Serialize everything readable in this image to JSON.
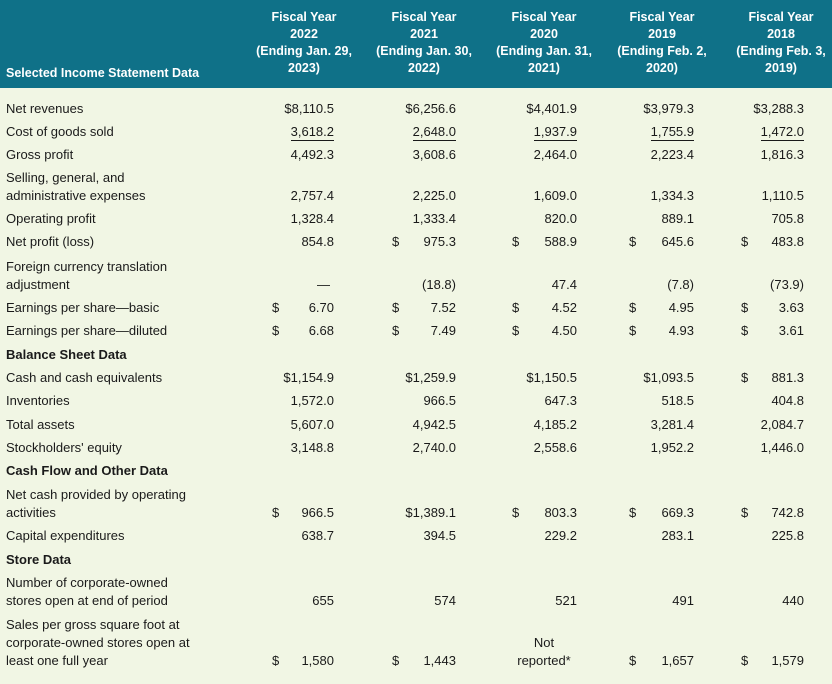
{
  "header": {
    "row_label": "Selected Income Statement Data",
    "columns": [
      {
        "l1": "Fiscal Year",
        "l2": "2022",
        "l3": "(Ending Jan. 29,",
        "l4": "2023)"
      },
      {
        "l1": "Fiscal Year",
        "l2": "2021",
        "l3": "(Ending Jan. 30,",
        "l4": "2022)"
      },
      {
        "l1": "Fiscal Year",
        "l2": "2020",
        "l3": "(Ending Jan. 31,",
        "l4": "2021)"
      },
      {
        "l1": "Fiscal Year",
        "l2": "2019",
        "l3": "(Ending Feb. 2,",
        "l4": "2020)"
      },
      {
        "l1": "Fiscal Year",
        "l2": "2018",
        "l3": "(Ending Feb. 3,",
        "l4": "2019)"
      }
    ]
  },
  "rows": [
    {
      "label": [
        "Net revenues"
      ],
      "cells": [
        {
          "d": "",
          "v": "$8,110.5"
        },
        {
          "d": "",
          "v": "$6,256.6"
        },
        {
          "d": "",
          "v": "$4,401.9"
        },
        {
          "d": "",
          "v": "$3,979.3"
        },
        {
          "d": "",
          "v": "$3,288.3"
        }
      ]
    },
    {
      "label": [
        "Cost of goods sold"
      ],
      "underline": true,
      "cells": [
        {
          "d": "",
          "v": "3,618.2"
        },
        {
          "d": "",
          "v": "2,648.0"
        },
        {
          "d": "",
          "v": "1,937.9"
        },
        {
          "d": "",
          "v": "1,755.9"
        },
        {
          "d": "",
          "v": "1,472.0"
        }
      ]
    },
    {
      "label": [
        "Gross profit"
      ],
      "cells": [
        {
          "d": "",
          "v": "4,492.3"
        },
        {
          "d": "",
          "v": "3,608.6"
        },
        {
          "d": "",
          "v": "2,464.0"
        },
        {
          "d": "",
          "v": "2,223.4"
        },
        {
          "d": "",
          "v": "1,816.3"
        }
      ]
    },
    {
      "label": [
        "Selling, general, and",
        "administrative expenses"
      ],
      "cells": [
        {
          "d": "",
          "v": "2,757.4"
        },
        {
          "d": "",
          "v": "2,225.0"
        },
        {
          "d": "",
          "v": "1,609.0"
        },
        {
          "d": "",
          "v": "1,334.3"
        },
        {
          "d": "",
          "v": "1,110.5"
        }
      ]
    },
    {
      "label": [
        "Operating profit"
      ],
      "cells": [
        {
          "d": "",
          "v": "1,328.4"
        },
        {
          "d": "",
          "v": "1,333.4"
        },
        {
          "d": "",
          "v": "820.0"
        },
        {
          "d": "",
          "v": "889.1"
        },
        {
          "d": "",
          "v": "705.8"
        }
      ]
    },
    {
      "label": [
        "Net profit (loss)"
      ],
      "cells": [
        {
          "d": "",
          "v": "854.8"
        },
        {
          "d": "$",
          "v": "975.3"
        },
        {
          "d": "$",
          "v": "588.9"
        },
        {
          "d": "$",
          "v": "645.6"
        },
        {
          "d": "$",
          "v": "483.8"
        }
      ]
    },
    {
      "label": [
        "Foreign currency translation",
        "adjustment"
      ],
      "cells": [
        {
          "d": "",
          "v": "—"
        },
        {
          "d": "",
          "v": "(18.8)"
        },
        {
          "d": "",
          "v": "47.4"
        },
        {
          "d": "",
          "v": "(7.8)"
        },
        {
          "d": "",
          "v": "(73.9)"
        }
      ]
    },
    {
      "label": [
        "Earnings per share—basic"
      ],
      "cells": [
        {
          "d": "$",
          "v": "6.70"
        },
        {
          "d": "$",
          "v": "7.52"
        },
        {
          "d": "$",
          "v": "4.52"
        },
        {
          "d": "$",
          "v": "4.95"
        },
        {
          "d": "$",
          "v": "3.63"
        }
      ]
    },
    {
      "label": [
        "Earnings per share—diluted"
      ],
      "cells": [
        {
          "d": "$",
          "v": "6.68"
        },
        {
          "d": "$",
          "v": "7.49"
        },
        {
          "d": "$",
          "v": "4.50"
        },
        {
          "d": "$",
          "v": "4.93"
        },
        {
          "d": "$",
          "v": "3.61"
        }
      ]
    },
    {
      "label": [
        "Balance Sheet Data"
      ],
      "bold": true,
      "cells": []
    },
    {
      "label": [
        "Cash and cash equivalents"
      ],
      "cells": [
        {
          "d": "",
          "v": "$1,154.9"
        },
        {
          "d": "",
          "v": "$1,259.9"
        },
        {
          "d": "",
          "v": "$1,150.5"
        },
        {
          "d": "",
          "v": "$1,093.5"
        },
        {
          "d": "$",
          "v": "881.3"
        }
      ]
    },
    {
      "label": [
        "Inventories"
      ],
      "cells": [
        {
          "d": "",
          "v": "1,572.0"
        },
        {
          "d": "",
          "v": "966.5"
        },
        {
          "d": "",
          "v": "647.3"
        },
        {
          "d": "",
          "v": "518.5"
        },
        {
          "d": "",
          "v": "404.8"
        }
      ]
    },
    {
      "label": [
        "Total assets"
      ],
      "cells": [
        {
          "d": "",
          "v": "5,607.0"
        },
        {
          "d": "",
          "v": "4,942.5"
        },
        {
          "d": "",
          "v": "4,185.2"
        },
        {
          "d": "",
          "v": "3,281.4"
        },
        {
          "d": "",
          "v": "2,084.7"
        }
      ]
    },
    {
      "label": [
        "Stockholders' equity"
      ],
      "cells": [
        {
          "d": "",
          "v": "3,148.8"
        },
        {
          "d": "",
          "v": "2,740.0"
        },
        {
          "d": "",
          "v": "2,558.6"
        },
        {
          "d": "",
          "v": "1,952.2"
        },
        {
          "d": "",
          "v": "1,446.0"
        }
      ]
    },
    {
      "label": [
        "Cash Flow and Other Data"
      ],
      "bold": true,
      "cells": []
    },
    {
      "label": [
        "Net cash provided by operating",
        "activities"
      ],
      "cells": [
        {
          "d": "$",
          "v": "966.5"
        },
        {
          "d": "",
          "v": "$1,389.1"
        },
        {
          "d": "$",
          "v": "803.3"
        },
        {
          "d": "$",
          "v": "669.3"
        },
        {
          "d": "$",
          "v": "742.8"
        }
      ]
    },
    {
      "label": [
        "Capital expenditures"
      ],
      "cells": [
        {
          "d": "",
          "v": "638.7"
        },
        {
          "d": "",
          "v": "394.5"
        },
        {
          "d": "",
          "v": "229.2"
        },
        {
          "d": "",
          "v": "283.1"
        },
        {
          "d": "",
          "v": "225.8"
        }
      ]
    },
    {
      "label": [
        "Store Data"
      ],
      "bold": true,
      "cells": []
    },
    {
      "label": [
        "Number of corporate-owned",
        "stores open at end of period"
      ],
      "cells": [
        {
          "d": "",
          "v": "655"
        },
        {
          "d": "",
          "v": "574"
        },
        {
          "d": "",
          "v": "521"
        },
        {
          "d": "",
          "v": "491"
        },
        {
          "d": "",
          "v": "440"
        }
      ]
    },
    {
      "label": [
        "Sales per gross square foot at",
        "corporate-owned stores open at",
        "least one full year"
      ],
      "cells": [
        {
          "d": "$",
          "v": "1,580"
        },
        {
          "d": "$",
          "v": "1,443"
        },
        {
          "d": "",
          "v": "Not",
          "v2": "reported*"
        },
        {
          "d": "$",
          "v": "1,657"
        },
        {
          "d": "$",
          "v": "1,579"
        }
      ]
    }
  ]
}
